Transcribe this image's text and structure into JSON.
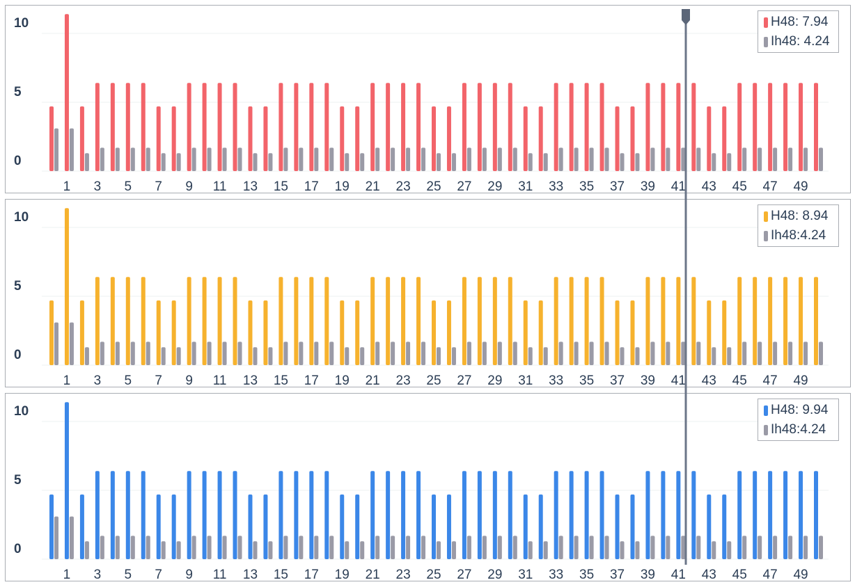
{
  "chart_data": [
    {
      "type": "bar",
      "categories": [
        null,
        "1",
        null,
        "3",
        null,
        "5",
        null,
        "7",
        null,
        "9",
        null,
        "11",
        null,
        "13",
        null,
        "15",
        null,
        "17",
        null,
        "19",
        null,
        "21",
        null,
        "23",
        null,
        "25",
        null,
        "27",
        null,
        "29",
        null,
        "31",
        null,
        "33",
        null,
        "35",
        null,
        "37",
        null,
        "39",
        null,
        "41",
        null,
        "43",
        null,
        "45",
        null,
        "47",
        null,
        "49",
        null
      ],
      "series": [
        {
          "name": "H48: 7.94",
          "color": "#f2646a",
          "values": [
            4.7,
            11.4,
            4.7,
            6.4,
            6.4,
            6.4,
            6.4,
            4.7,
            4.7,
            6.4,
            6.4,
            6.4,
            6.4,
            4.7,
            4.7,
            6.4,
            6.4,
            6.4,
            6.4,
            4.7,
            4.7,
            6.4,
            6.4,
            6.4,
            6.4,
            4.7,
            4.7,
            6.4,
            6.4,
            6.4,
            6.4,
            4.7,
            4.7,
            6.4,
            6.4,
            6.4,
            6.4,
            4.7,
            4.7,
            6.4,
            6.4,
            6.4,
            6.4,
            4.7,
            4.7,
            6.4,
            6.4,
            6.4,
            6.4,
            6.4,
            6.4
          ]
        },
        {
          "name": "Ih48: 4.24",
          "color": "#9a9aa6",
          "values": [
            3.1,
            3.1,
            1.3,
            1.7,
            1.7,
            1.7,
            1.7,
            1.3,
            1.3,
            1.7,
            1.7,
            1.7,
            1.7,
            1.3,
            1.3,
            1.7,
            1.7,
            1.7,
            1.7,
            1.3,
            1.3,
            1.7,
            1.7,
            1.7,
            1.7,
            1.3,
            1.3,
            1.7,
            1.7,
            1.7,
            1.7,
            1.3,
            1.3,
            1.7,
            1.7,
            1.7,
            1.7,
            1.3,
            1.3,
            1.7,
            1.7,
            1.7,
            1.7,
            1.3,
            1.3,
            1.7,
            1.7,
            1.7,
            1.7,
            1.7,
            1.7
          ]
        }
      ],
      "ylim": [
        0,
        12
      ],
      "yticks": [
        0,
        5,
        10
      ],
      "grid": true
    },
    {
      "type": "bar",
      "categories": [
        null,
        "1",
        null,
        "3",
        null,
        "5",
        null,
        "7",
        null,
        "9",
        null,
        "11",
        null,
        "13",
        null,
        "15",
        null,
        "17",
        null,
        "19",
        null,
        "21",
        null,
        "23",
        null,
        "25",
        null,
        "27",
        null,
        "29",
        null,
        "31",
        null,
        "33",
        null,
        "35",
        null,
        "37",
        null,
        "39",
        null,
        "41",
        null,
        "43",
        null,
        "45",
        null,
        "47",
        null,
        "49",
        null
      ],
      "series": [
        {
          "name": "H48: 8.94",
          "color": "#f6b22e",
          "values": [
            4.7,
            11.4,
            4.7,
            6.4,
            6.4,
            6.4,
            6.4,
            4.7,
            4.7,
            6.4,
            6.4,
            6.4,
            6.4,
            4.7,
            4.7,
            6.4,
            6.4,
            6.4,
            6.4,
            4.7,
            4.7,
            6.4,
            6.4,
            6.4,
            6.4,
            4.7,
            4.7,
            6.4,
            6.4,
            6.4,
            6.4,
            4.7,
            4.7,
            6.4,
            6.4,
            6.4,
            6.4,
            4.7,
            4.7,
            6.4,
            6.4,
            6.4,
            6.4,
            4.7,
            4.7,
            6.4,
            6.4,
            6.4,
            6.4,
            6.4,
            6.4
          ]
        },
        {
          "name": "Ih48:4.24",
          "color": "#9a9aa6",
          "values": [
            3.1,
            3.1,
            1.3,
            1.7,
            1.7,
            1.7,
            1.7,
            1.3,
            1.3,
            1.7,
            1.7,
            1.7,
            1.7,
            1.3,
            1.3,
            1.7,
            1.7,
            1.7,
            1.7,
            1.3,
            1.3,
            1.7,
            1.7,
            1.7,
            1.7,
            1.3,
            1.3,
            1.7,
            1.7,
            1.7,
            1.7,
            1.3,
            1.3,
            1.7,
            1.7,
            1.7,
            1.7,
            1.3,
            1.3,
            1.7,
            1.7,
            1.7,
            1.7,
            1.3,
            1.3,
            1.7,
            1.7,
            1.7,
            1.7,
            1.7,
            1.7
          ]
        }
      ],
      "ylim": [
        0,
        12
      ],
      "yticks": [
        0,
        5,
        10
      ],
      "grid": true
    },
    {
      "type": "bar",
      "categories": [
        null,
        "1",
        null,
        "3",
        null,
        "5",
        null,
        "7",
        null,
        "9",
        null,
        "11",
        null,
        "13",
        null,
        "15",
        null,
        "17",
        null,
        "19",
        null,
        "21",
        null,
        "23",
        null,
        "25",
        null,
        "27",
        null,
        "29",
        null,
        "31",
        null,
        "33",
        null,
        "35",
        null,
        "37",
        null,
        "39",
        null,
        "41",
        null,
        "43",
        null,
        "45",
        null,
        "47",
        null,
        "49",
        null
      ],
      "series": [
        {
          "name": "H48: 9.94",
          "color": "#3b87e8",
          "values": [
            4.7,
            11.4,
            4.7,
            6.4,
            6.4,
            6.4,
            6.4,
            4.7,
            4.7,
            6.4,
            6.4,
            6.4,
            6.4,
            4.7,
            4.7,
            6.4,
            6.4,
            6.4,
            6.4,
            4.7,
            4.7,
            6.4,
            6.4,
            6.4,
            6.4,
            4.7,
            4.7,
            6.4,
            6.4,
            6.4,
            6.4,
            4.7,
            4.7,
            6.4,
            6.4,
            6.4,
            6.4,
            4.7,
            4.7,
            6.4,
            6.4,
            6.4,
            6.4,
            4.7,
            4.7,
            6.4,
            6.4,
            6.4,
            6.4,
            6.4,
            6.4
          ]
        },
        {
          "name": "Ih48:4.24",
          "color": "#9a9aa6",
          "values": [
            3.1,
            3.1,
            1.3,
            1.7,
            1.7,
            1.7,
            1.7,
            1.3,
            1.3,
            1.7,
            1.7,
            1.7,
            1.7,
            1.3,
            1.3,
            1.7,
            1.7,
            1.7,
            1.7,
            1.3,
            1.3,
            1.7,
            1.7,
            1.7,
            1.7,
            1.3,
            1.3,
            1.7,
            1.7,
            1.7,
            1.7,
            1.3,
            1.3,
            1.7,
            1.7,
            1.7,
            1.7,
            1.3,
            1.3,
            1.7,
            1.7,
            1.7,
            1.7,
            1.3,
            1.3,
            1.7,
            1.7,
            1.7,
            1.7,
            1.7,
            1.7
          ]
        }
      ],
      "ylim": [
        0,
        12
      ],
      "yticks": [
        0,
        5,
        10
      ],
      "grid": true
    }
  ]
}
